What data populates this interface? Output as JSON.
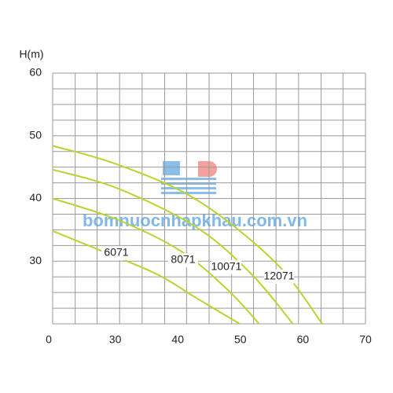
{
  "chart_data": {
    "type": "line",
    "y_label": "H(m)",
    "origin_label": "0",
    "watermark": "bomnuocnhapkhau.com.vn",
    "xlim": [
      20,
      70
    ],
    "ylim": [
      20,
      60
    ],
    "xticks": [
      30,
      40,
      50,
      60,
      70
    ],
    "yticks": [
      30,
      40,
      50,
      60
    ],
    "xgrid": [
      20,
      23.6,
      27.1,
      30.7,
      34.3,
      37.9,
      41.4,
      45,
      48.6,
      52.1,
      55.7,
      59.3,
      62.9,
      66.4,
      70
    ],
    "ygrid": [
      20,
      22.5,
      25,
      27.5,
      30,
      32.5,
      35,
      37.5,
      40,
      42.5,
      45,
      47.5,
      50,
      52.5,
      55,
      57.5,
      60
    ],
    "grid": true,
    "series": [
      {
        "name": "6071",
        "color": "#b8d52e",
        "x": [
          20,
          27.9,
          36.7,
          43,
          49.9
        ],
        "values": [
          34.8,
          31.6,
          27.9,
          24.1,
          20
        ]
      },
      {
        "name": "8071",
        "color": "#b8d52e",
        "x": [
          20,
          30.4,
          40.5,
          48,
          53
        ],
        "values": [
          40,
          36.6,
          31.6,
          25.4,
          20
        ]
      },
      {
        "name": "10071",
        "color": "#b8d52e",
        "x": [
          20,
          30.4,
          43,
          51.8,
          58.4
        ],
        "values": [
          44.6,
          41.6,
          35.4,
          27.9,
          20
        ]
      },
      {
        "name": "12071",
        "color": "#b8d52e",
        "x": [
          20,
          30.4,
          43,
          55.6,
          63.1
        ],
        "values": [
          48.4,
          45.4,
          39.8,
          29.8,
          20
        ]
      }
    ]
  }
}
